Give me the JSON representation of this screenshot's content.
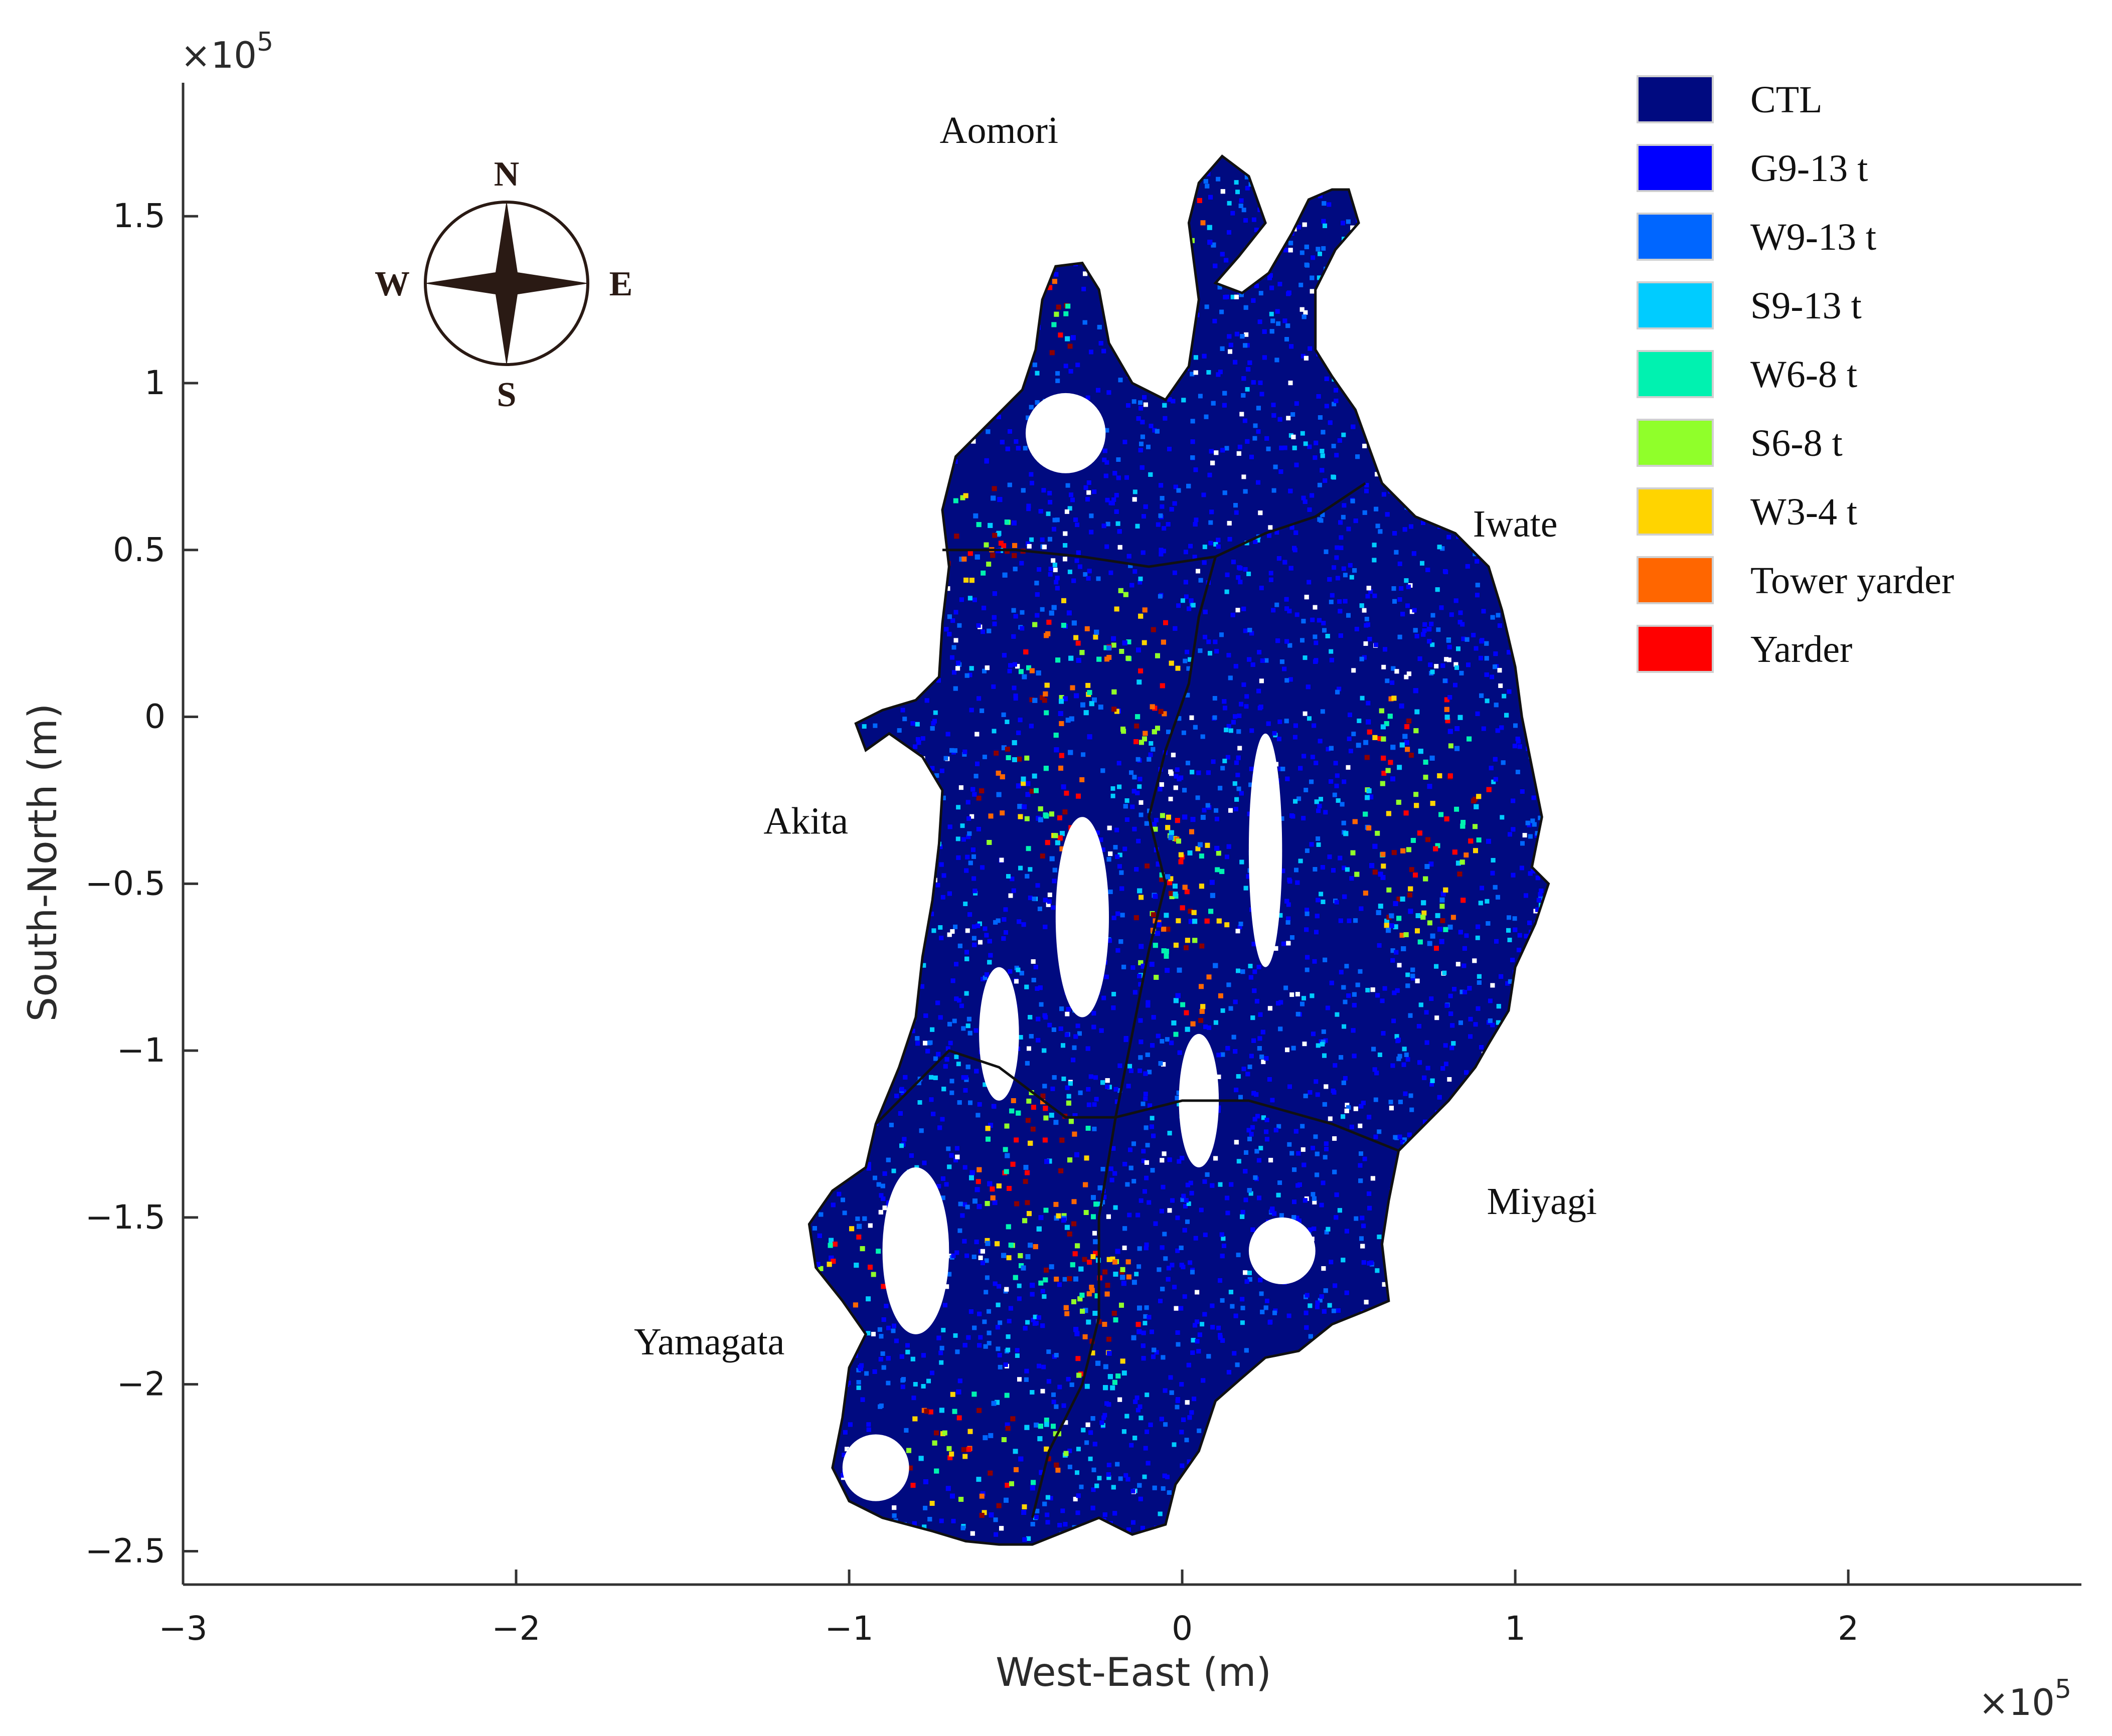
{
  "chart_data": {
    "type": "map",
    "xlabel": "West-East (m)",
    "ylabel": "South-North (m)",
    "x_multiplier": "×10",
    "x_multiplier_exp": "5",
    "y_multiplier": "×10",
    "y_multiplier_exp": "5",
    "xlim": [
      -3,
      2.7
    ],
    "ylim": [
      -2.6,
      1.9
    ],
    "x_ticks": [
      -3,
      -2,
      -1,
      0,
      1,
      2
    ],
    "x_tick_labels": [
      "−3",
      "−2",
      "−1",
      "0",
      "1",
      "2"
    ],
    "y_ticks": [
      1.5,
      1,
      0.5,
      0,
      -0.5,
      -1,
      -1.5,
      -2,
      -2.5
    ],
    "y_tick_labels": [
      "1.5",
      "1",
      "0.5",
      "0",
      "−0.5",
      "−1",
      "−1.5",
      "−2",
      "−2.5"
    ],
    "grid": false,
    "legend_position": "top-right",
    "legend": [
      {
        "label": "CTL",
        "color": "#000a80"
      },
      {
        "label": "G9-13 t",
        "color": "#0000ff"
      },
      {
        "label": "W9-13 t",
        "color": "#0066ff"
      },
      {
        "label": "S9-13 t",
        "color": "#00ccff"
      },
      {
        "label": "W6-8 t",
        "color": "#00f2b0"
      },
      {
        "label": "S6-8 t",
        "color": "#90ff2a"
      },
      {
        "label": "W3-4 t",
        "color": "#ffd400"
      },
      {
        "label": "Tower yarder",
        "color": "#ff6600"
      },
      {
        "label": "Yarder",
        "color": "#ff0000"
      }
    ],
    "extra_class_color": "#8b0000",
    "regions": [
      {
        "name": "Aomori",
        "x": -0.55,
        "y": 1.72
      },
      {
        "name": "Iwate",
        "x": 1.0,
        "y": 0.54
      },
      {
        "name": "Akita",
        "x": -1.13,
        "y": -0.35
      },
      {
        "name": "Miyagi",
        "x": 1.08,
        "y": -1.49
      },
      {
        "name": "Yamagata",
        "x": -1.42,
        "y": -1.91
      }
    ]
  },
  "compass": {
    "north": "N",
    "south": "S",
    "east": "E",
    "west": "W"
  }
}
